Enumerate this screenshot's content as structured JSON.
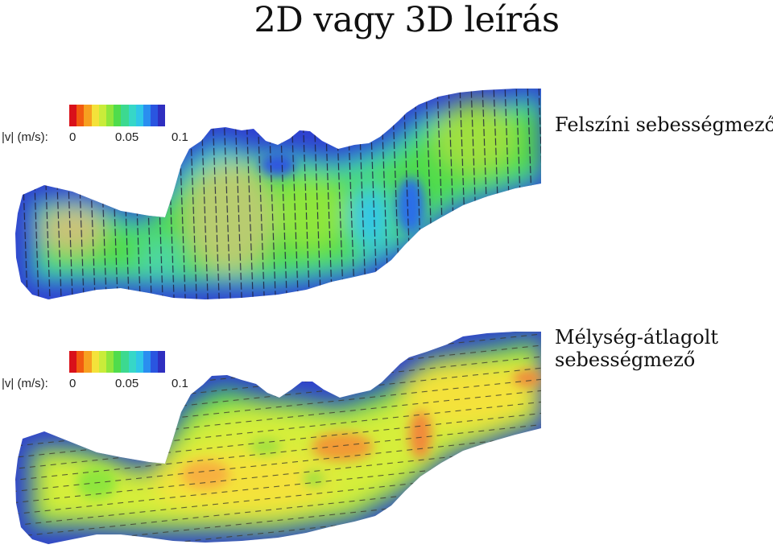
{
  "title": "2D vagy 3D leírás",
  "legend": {
    "label": "|v| (m/s):",
    "ticks": [
      "0",
      "0.05",
      "0.1"
    ],
    "colors": [
      "#d9101a",
      "#f25a10",
      "#f7a020",
      "#f4e23a",
      "#c9ec3a",
      "#8ee63c",
      "#4fdc4c",
      "#3cd990",
      "#36d7c8",
      "#2fc6e8",
      "#2a8ef0",
      "#2a55e0",
      "#2f2fc0"
    ]
  },
  "panels": [
    {
      "caption_lines": [
        "Felszíni sebességmező"
      ]
    },
    {
      "caption_lines": [
        "Mélység-átlagolt",
        "sebességmező"
      ]
    }
  ]
}
